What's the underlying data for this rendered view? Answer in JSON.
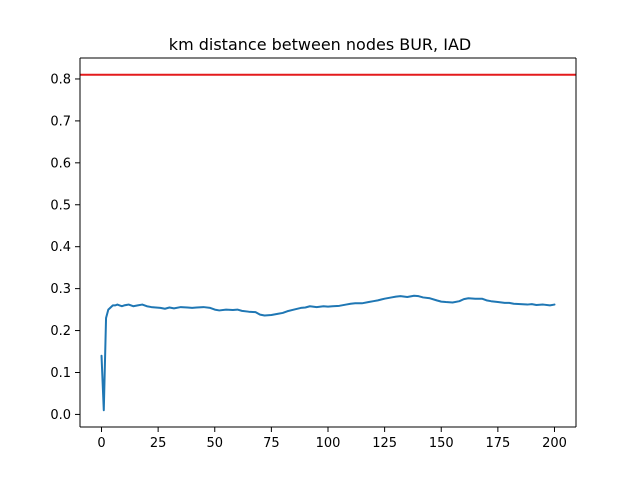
{
  "chart_data": {
    "type": "line",
    "title": "km distance between nodes BUR, IAD",
    "xlabel": "",
    "ylabel": "",
    "xlim": [
      -9.5,
      209.5
    ],
    "ylim": [
      -0.03,
      0.85
    ],
    "xticks": [
      0,
      25,
      50,
      75,
      100,
      125,
      150,
      175,
      200
    ],
    "yticks": [
      0.0,
      0.1,
      0.2,
      0.3,
      0.4,
      0.5,
      0.6,
      0.7,
      0.8
    ],
    "ytick_labels": [
      "0.0",
      "0.1",
      "0.2",
      "0.3",
      "0.4",
      "0.5",
      "0.6",
      "0.7",
      "0.8"
    ],
    "grid": false,
    "threshold": {
      "y": 0.81,
      "color": "#e41a1c"
    },
    "series": [
      {
        "color": "#1f77b4",
        "x": [
          0,
          1,
          2,
          3,
          4,
          5,
          6,
          7,
          8,
          9,
          10,
          12,
          14,
          16,
          18,
          20,
          22,
          24,
          26,
          28,
          30,
          32,
          35,
          38,
          40,
          42,
          45,
          48,
          50,
          52,
          55,
          58,
          60,
          62,
          65,
          68,
          70,
          72,
          75,
          78,
          80,
          82,
          85,
          88,
          90,
          92,
          95,
          98,
          100,
          102,
          105,
          108,
          110,
          112,
          115,
          118,
          120,
          122,
          125,
          128,
          130,
          132,
          135,
          138,
          140,
          142,
          145,
          148,
          150,
          152,
          155,
          158,
          160,
          162,
          165,
          168,
          170,
          172,
          175,
          178,
          180,
          182,
          185,
          188,
          190,
          192,
          195,
          198,
          200
        ],
        "y": [
          0.14,
          0.01,
          0.23,
          0.25,
          0.255,
          0.26,
          0.26,
          0.262,
          0.26,
          0.258,
          0.26,
          0.262,
          0.258,
          0.26,
          0.262,
          0.258,
          0.256,
          0.255,
          0.254,
          0.252,
          0.255,
          0.253,
          0.256,
          0.255,
          0.254,
          0.255,
          0.256,
          0.254,
          0.25,
          0.248,
          0.25,
          0.249,
          0.25,
          0.247,
          0.245,
          0.244,
          0.238,
          0.236,
          0.237,
          0.24,
          0.242,
          0.246,
          0.25,
          0.254,
          0.255,
          0.258,
          0.256,
          0.258,
          0.257,
          0.258,
          0.259,
          0.262,
          0.264,
          0.265,
          0.265,
          0.268,
          0.27,
          0.272,
          0.276,
          0.279,
          0.281,
          0.282,
          0.28,
          0.283,
          0.282,
          0.279,
          0.277,
          0.272,
          0.269,
          0.268,
          0.267,
          0.27,
          0.275,
          0.277,
          0.276,
          0.276,
          0.272,
          0.27,
          0.268,
          0.266,
          0.266,
          0.264,
          0.263,
          0.262,
          0.263,
          0.261,
          0.262,
          0.26,
          0.262
        ]
      }
    ]
  }
}
